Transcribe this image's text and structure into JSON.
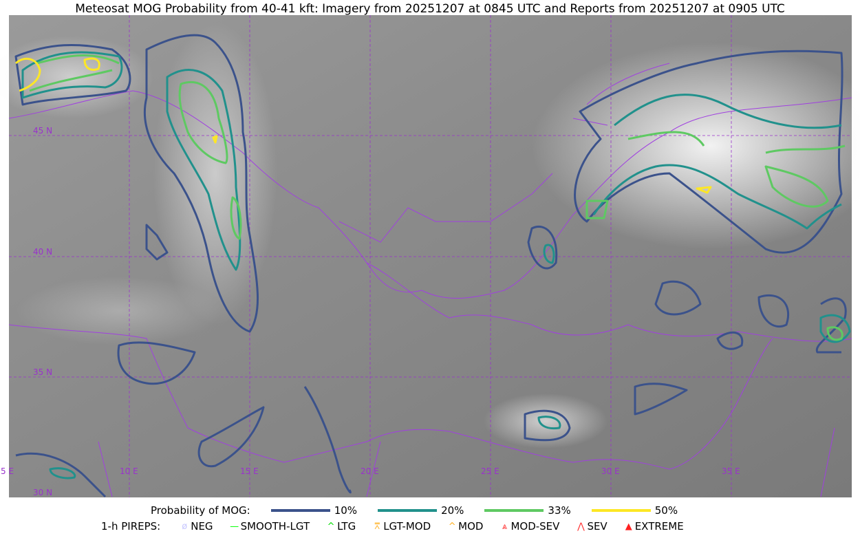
{
  "title": "Meteosat MOG Probability from 40-41 kft: Imagery from 20251207 at 0845 UTC and Reports from 20251207 at 0905 UTC",
  "map": {
    "lon_labels": [
      "5 E",
      "10 E",
      "15 E",
      "20 E",
      "25 E",
      "30 E",
      "35 E"
    ],
    "lat_labels": [
      "45 N",
      "40 N",
      "35 N",
      "30 N"
    ],
    "grid_color": "#9932cc",
    "border_color": "#a040e0"
  },
  "legend": {
    "probability_label": "Probability of MOG:",
    "levels": [
      {
        "label": "10%",
        "color": "#3b528b"
      },
      {
        "label": "20%",
        "color": "#21918c"
      },
      {
        "label": "33%",
        "color": "#5ec962"
      },
      {
        "label": "50%",
        "color": "#fde725"
      }
    ],
    "pireps_label": "1-h PIREPS:",
    "pireps": [
      {
        "label": "NEG",
        "color": "#c8c8ff",
        "icon": "neg-icon"
      },
      {
        "label": "SMOOTH-LGT",
        "color": "#00ff00",
        "icon": "smooth-lgt-icon"
      },
      {
        "label": "LTG",
        "color": "#00dd00",
        "icon": "ltg-icon"
      },
      {
        "label": "LGT-MOD",
        "color": "#ffb020",
        "icon": "lgt-mod-icon"
      },
      {
        "label": "MOD",
        "color": "#ffb020",
        "icon": "mod-icon"
      },
      {
        "label": "MOD-SEV",
        "color": "#ff3030",
        "icon": "mod-sev-icon"
      },
      {
        "label": "SEV",
        "color": "#ff3030",
        "icon": "sev-icon"
      },
      {
        "label": "EXTREME",
        "color": "#ff2020",
        "icon": "extreme-icon"
      }
    ]
  }
}
